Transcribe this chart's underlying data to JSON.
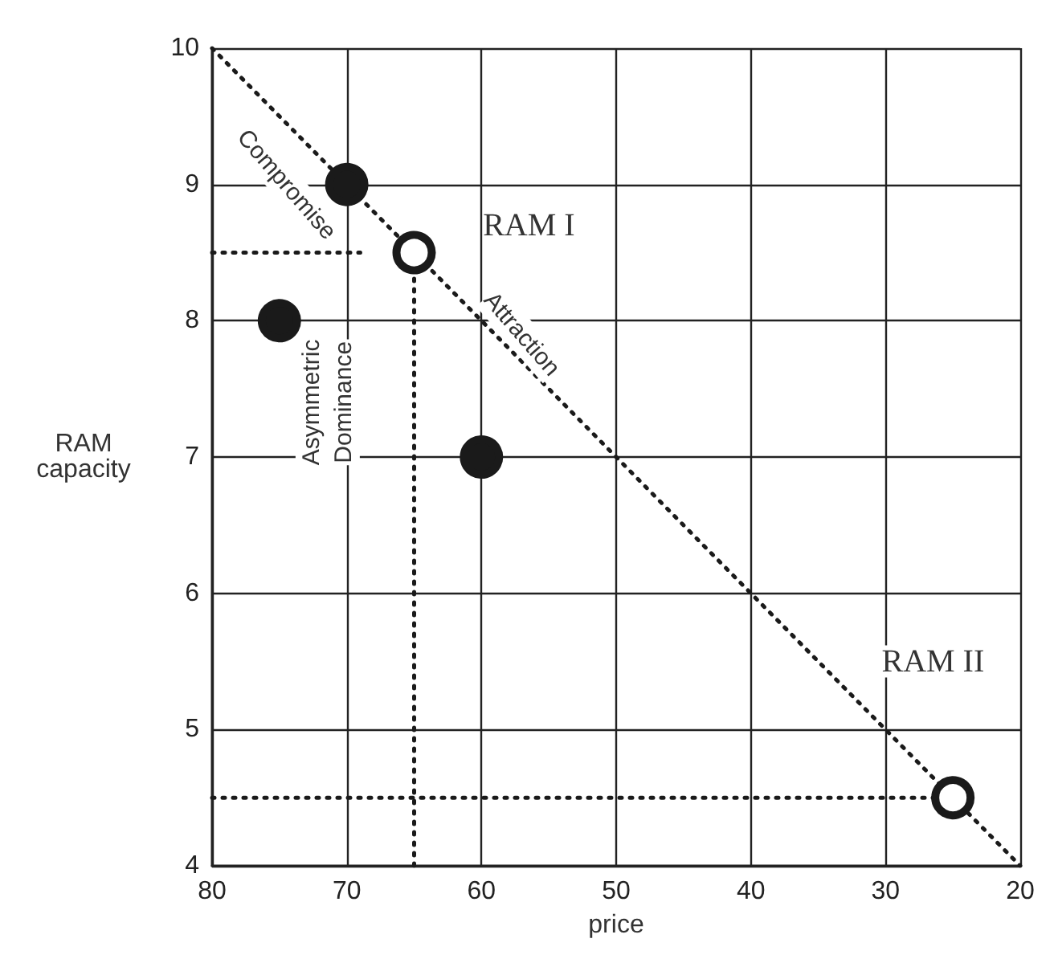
{
  "chart_data": {
    "type": "scatter",
    "xlabel": "price",
    "ylabel": "RAM\ncapacity",
    "xlim": [
      80,
      20
    ],
    "ylim": [
      4,
      10
    ],
    "xticks": [
      80,
      70,
      60,
      50,
      40,
      30,
      20
    ],
    "yticks": [
      4,
      5,
      6,
      7,
      8,
      9,
      10
    ],
    "grid": true,
    "series": [
      {
        "type": "line",
        "color": "#1a1a1a",
        "x": [
          80,
          20
        ],
        "values": [
          10,
          4
        ],
        "marker": "none",
        "line_style": "dotted"
      },
      {
        "type": "line",
        "color": "#1a1a1a",
        "x": [
          80,
          69
        ],
        "values": [
          8.5,
          8.5
        ],
        "marker": "none",
        "line_style": "dotted"
      },
      {
        "type": "line",
        "color": "#1a1a1a",
        "x": [
          65,
          65
        ],
        "values": [
          4,
          8.5
        ],
        "marker": "none",
        "line_style": "dotted"
      },
      {
        "type": "line",
        "color": "#1a1a1a",
        "x": [
          80,
          25
        ],
        "values": [
          4.5,
          4.5
        ],
        "marker": "none",
        "line_style": "dotted"
      },
      {
        "color": "#1a1a1a",
        "x": [
          70,
          75,
          60
        ],
        "values": [
          9,
          8,
          7
        ],
        "marker": "circle"
      },
      {
        "color": "#ffffff",
        "x": [
          65,
          25
        ],
        "values": [
          8.5,
          4.5
        ],
        "marker": "circle"
      }
    ],
    "annotations": [
      "Compromise",
      "Attraction",
      "Asymmetric\nDominance",
      "RAM I",
      "RAM II"
    ]
  }
}
